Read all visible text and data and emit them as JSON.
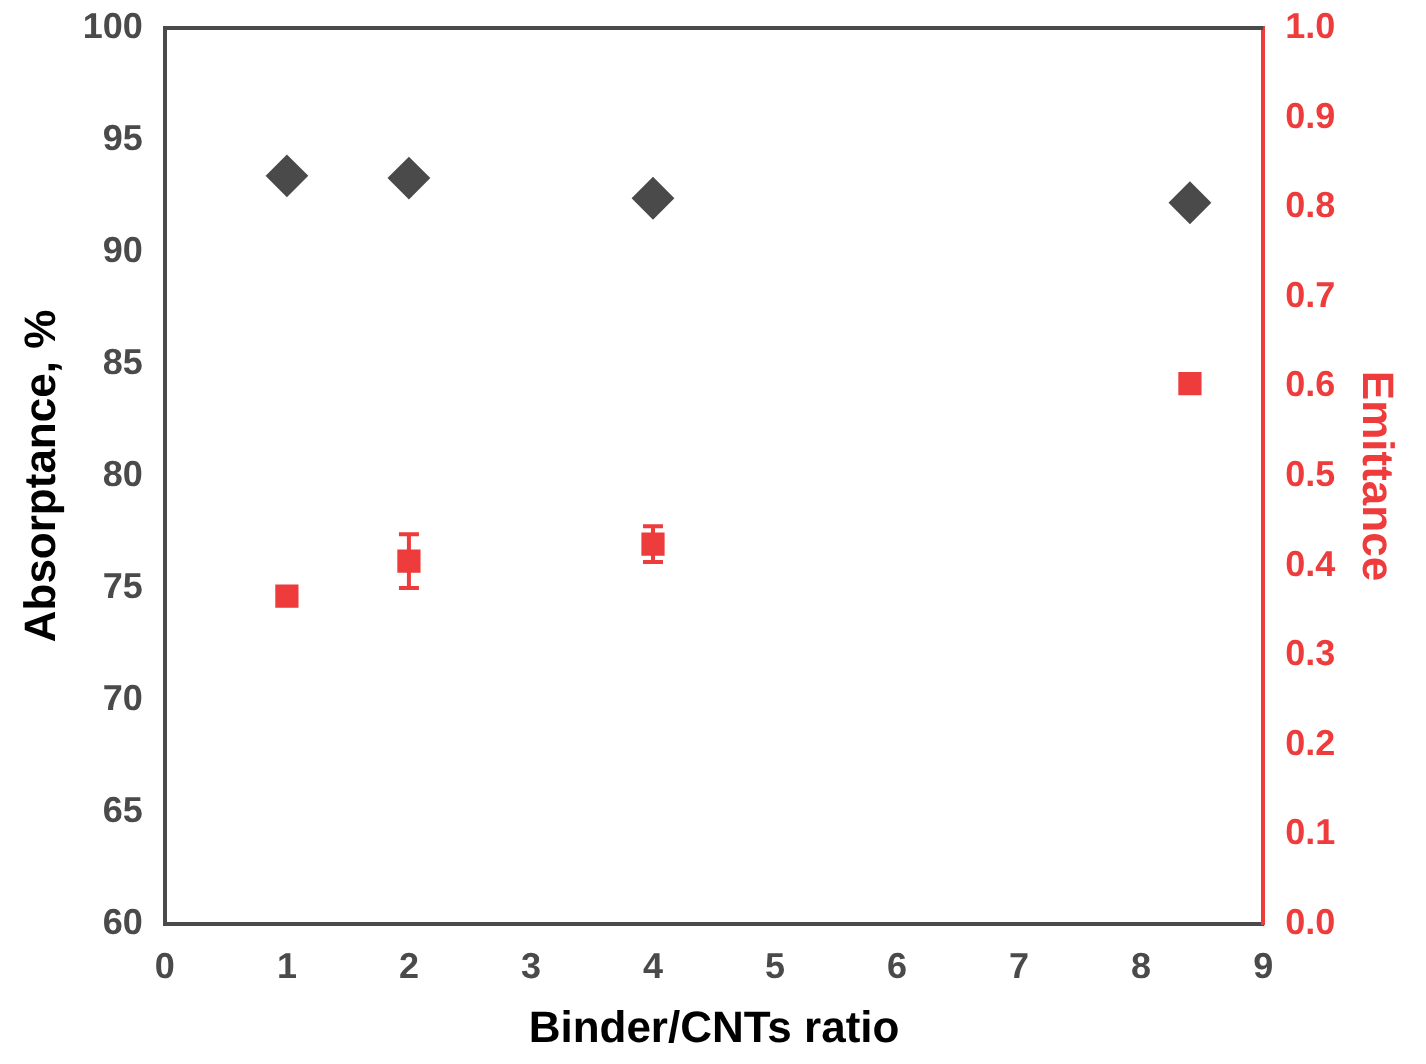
{
  "chart_data": {
    "type": "scatter",
    "xlabel": "Binder/CNTs ratio",
    "ylabel": "Absorptance, %",
    "y2label": "Emittance",
    "xlim": [
      0,
      9
    ],
    "xticks": [
      0,
      1,
      2,
      3,
      4,
      5,
      6,
      7,
      8,
      9
    ],
    "ylim": [
      60,
      100
    ],
    "yticks": [
      60,
      65,
      70,
      75,
      80,
      85,
      90,
      95,
      100
    ],
    "y2lim": [
      0,
      1
    ],
    "y2ticks": [
      {
        "value": 0,
        "label": "0.0"
      },
      0.1,
      0.2,
      0.3,
      0.4,
      0.5,
      0.6,
      0.7,
      0.8,
      0.9,
      {
        "value": 1,
        "label": "1.0"
      }
    ],
    "grid": false,
    "legend": false,
    "series": [
      {
        "color": "#4a4a4a",
        "marker": "diamond",
        "x": [
          1,
          2,
          4,
          8.4
        ],
        "values": [
          93.4,
          93.3,
          92.4,
          92.2
        ]
      },
      {
        "color": "#ee3b3b",
        "marker": "square",
        "axis": "y2",
        "x": [
          1,
          2,
          4,
          8.4
        ],
        "values": [
          0.366,
          0.405,
          0.424,
          0.603
        ],
        "errors": [
          null,
          0.03,
          0.02,
          null
        ]
      }
    ]
  }
}
